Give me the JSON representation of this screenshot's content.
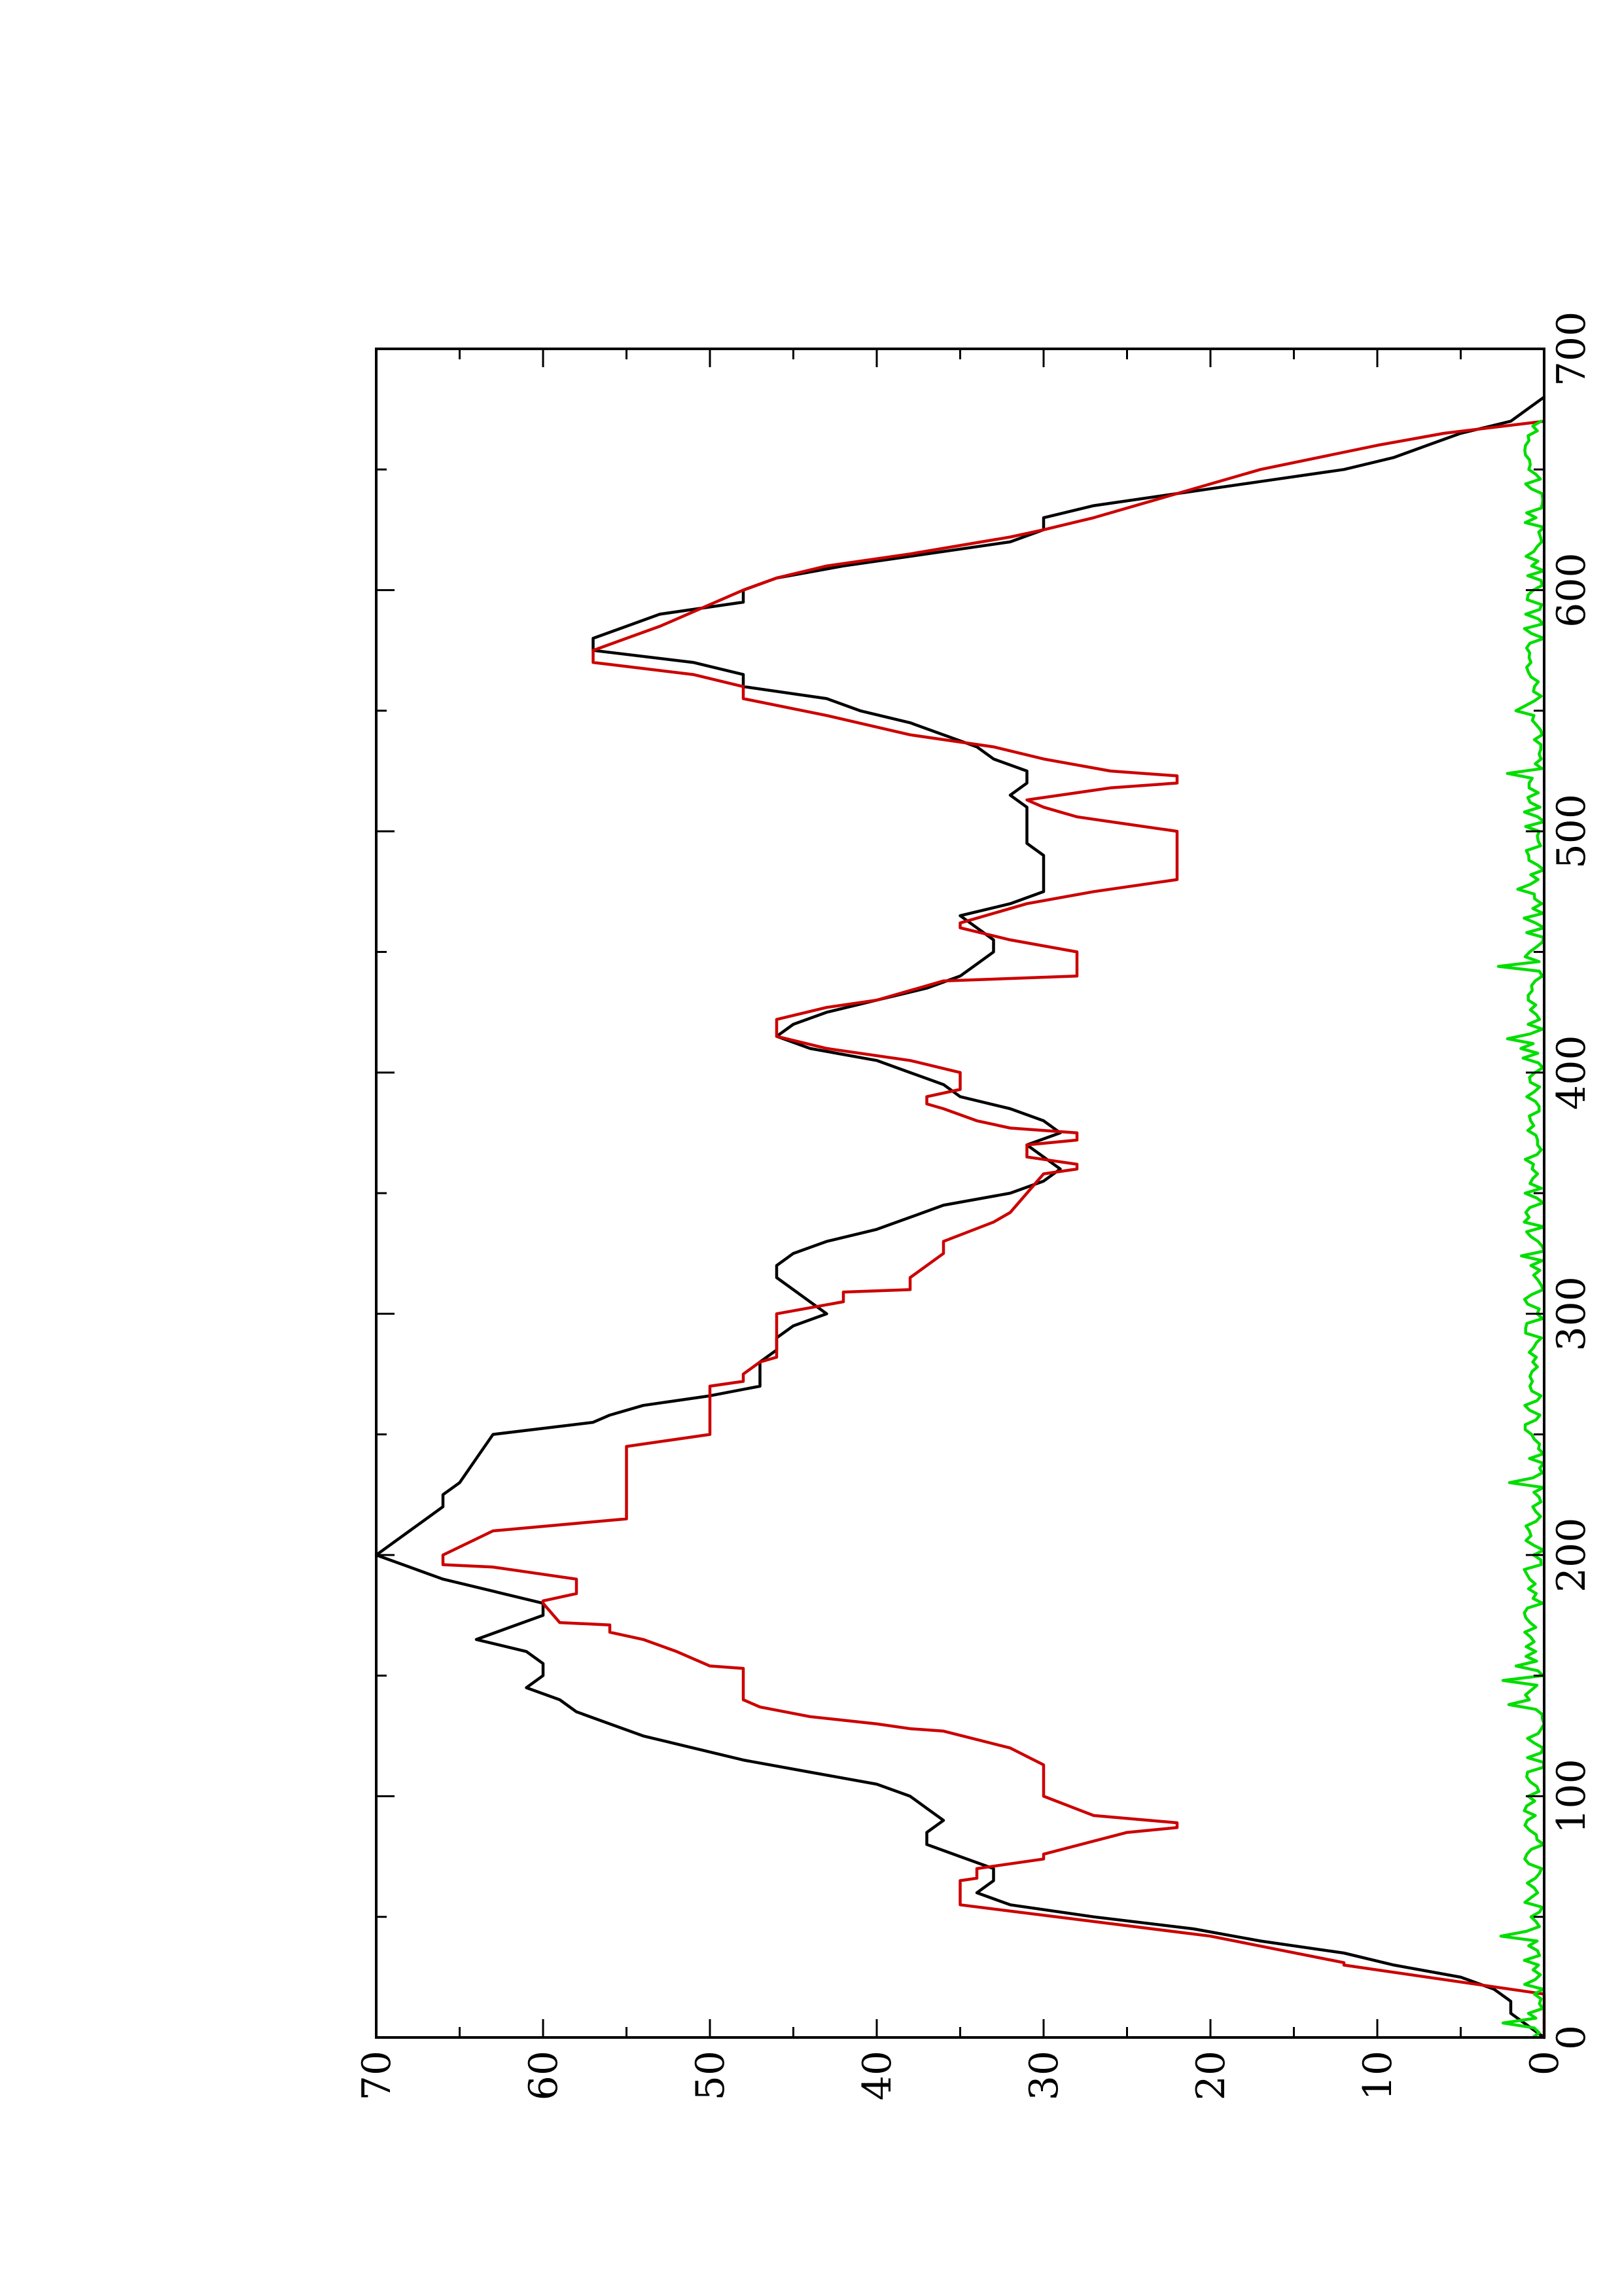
{
  "chart_data": {
    "type": "line",
    "title": "",
    "xlabel": "",
    "ylabel": "",
    "xlim": [
      0,
      700
    ],
    "ylim": [
      0,
      70
    ],
    "x_major_ticks": [
      0,
      100,
      200,
      300,
      400,
      500,
      600,
      700
    ],
    "x_minor_ticks": [
      50,
      150,
      250,
      350,
      450,
      550,
      650
    ],
    "y_major_ticks": [
      0,
      10,
      20,
      30,
      40,
      50,
      60,
      70
    ],
    "y_minor_ticks": [
      5,
      15,
      25,
      35,
      45,
      55,
      65
    ],
    "x_tick_labels": [
      "0",
      "100",
      "200",
      "300",
      "400",
      "500",
      "600",
      "700"
    ],
    "y_tick_labels": [
      "0",
      "10",
      "20",
      "30",
      "40",
      "50",
      "60",
      "70"
    ],
    "grid": false,
    "orientation": "page rotated 90 degrees counter-clockwise",
    "series": [
      {
        "color": "#000000",
        "x": [
          0,
          5,
          10,
          15,
          20,
          25,
          30,
          35,
          40,
          45,
          50,
          55,
          60,
          65,
          70,
          75,
          80,
          85,
          90,
          95,
          100,
          105,
          110,
          115,
          120,
          125,
          130,
          135,
          140,
          145,
          150,
          155,
          160,
          165,
          170,
          175,
          180,
          185,
          190,
          195,
          200,
          205,
          210,
          215,
          220,
          225,
          230,
          240,
          250,
          255,
          258,
          262,
          266,
          270,
          280,
          285,
          290,
          295,
          300,
          305,
          310,
          315,
          320,
          325,
          330,
          335,
          340,
          345,
          350,
          355,
          360,
          365,
          370,
          375,
          380,
          385,
          390,
          395,
          400,
          405,
          410,
          415,
          420,
          425,
          430,
          435,
          440,
          445,
          450,
          455,
          460,
          465,
          470,
          475,
          480,
          485,
          490,
          495,
          500,
          505,
          510,
          515,
          520,
          525,
          530,
          535,
          540,
          545,
          550,
          555,
          560,
          565,
          570,
          575,
          580,
          585,
          590,
          595,
          600,
          605,
          610,
          615,
          620,
          625,
          630,
          635,
          640,
          645,
          650,
          655,
          660,
          665,
          670,
          675,
          680
        ],
        "y": [
          0,
          1,
          2,
          2,
          3,
          5,
          9,
          12,
          17,
          21,
          27,
          32,
          34,
          33,
          33,
          35,
          37,
          37,
          36,
          37,
          38,
          40,
          44,
          48,
          51,
          54,
          56,
          58,
          59,
          61,
          60,
          60,
          61,
          64,
          62,
          60,
          60,
          63,
          66,
          68,
          70,
          69,
          68,
          67,
          66,
          66,
          65,
          64,
          63,
          57,
          56,
          54,
          50,
          47,
          47,
          46,
          46,
          45,
          43,
          44,
          45,
          46,
          46,
          45,
          43,
          40,
          38,
          36,
          32,
          30,
          29,
          30,
          31,
          29,
          30,
          32,
          35,
          36,
          38,
          40,
          44,
          46,
          45,
          43,
          40,
          37,
          35,
          34,
          33,
          33,
          34,
          35,
          32,
          30,
          30,
          30,
          30,
          31,
          31,
          31,
          31,
          32,
          31,
          31,
          33,
          34,
          36,
          38,
          41,
          43,
          48,
          48,
          51,
          57,
          57,
          55,
          53,
          48,
          48,
          46,
          42,
          37,
          32,
          30,
          30,
          27,
          22,
          17,
          12,
          9,
          7,
          5,
          2,
          1,
          0
        ]
      },
      {
        "color": "#cc0000",
        "x": [
          0,
          18,
          30,
          31,
          42,
          55,
          65,
          66,
          70,
          74,
          76,
          85,
          87,
          89,
          92,
          100,
          105,
          113,
          120,
          127,
          128,
          130,
          133,
          137,
          140,
          150,
          153,
          154,
          160,
          165,
          168,
          171,
          172,
          180,
          181,
          184,
          190,
          195,
          196,
          200,
          210,
          215,
          225,
          245,
          250,
          270,
          272,
          275,
          280,
          282,
          285,
          300,
          305,
          309,
          310,
          315,
          320,
          325,
          330,
          338,
          342,
          350,
          358,
          360,
          362,
          365,
          370,
          372,
          375,
          377,
          380,
          385,
          387,
          390,
          393,
          400,
          405,
          410,
          415,
          422,
          427,
          430,
          438,
          440,
          450,
          455,
          460,
          462,
          470,
          475,
          480,
          485,
          500,
          503,
          506,
          508,
          510,
          513,
          518,
          520,
          523,
          525,
          530,
          535,
          540,
          548,
          555,
          560,
          565,
          570,
          575,
          580,
          585,
          600,
          605,
          610,
          615,
          622,
          625,
          630,
          640,
          650,
          660,
          665,
          670
        ],
        "y": [
          0,
          0,
          12,
          12,
          20,
          35,
          35,
          34,
          34,
          30,
          30,
          25,
          22,
          22,
          27,
          30,
          30,
          30,
          32,
          36,
          38,
          40,
          44,
          47,
          48,
          48,
          48,
          50,
          52,
          54,
          56,
          56,
          59,
          60,
          60,
          58,
          58,
          63,
          66,
          66,
          63,
          55,
          55,
          55,
          50,
          50,
          48,
          48,
          47,
          46,
          46,
          46,
          42,
          42,
          38,
          38,
          37,
          36,
          36,
          33,
          32,
          31,
          30,
          28,
          28,
          31,
          31,
          28,
          28,
          32,
          34,
          36,
          37,
          37,
          35,
          35,
          38,
          43,
          46,
          46,
          43,
          40,
          36,
          28,
          28,
          32,
          35,
          35,
          31,
          27,
          22,
          22,
          22,
          25,
          28,
          29,
          30,
          31,
          26,
          22,
          22,
          26,
          30,
          33,
          38,
          43,
          48,
          48,
          51,
          57,
          57,
          55,
          53,
          48,
          46,
          43,
          38,
          32,
          30,
          27,
          22,
          17,
          10,
          6,
          0
        ]
      },
      {
        "color": "#00dd00",
        "x": [
          0,
          670
        ],
        "y_description": "noise",
        "y": [
          0.2,
          0.4
        ]
      }
    ]
  }
}
